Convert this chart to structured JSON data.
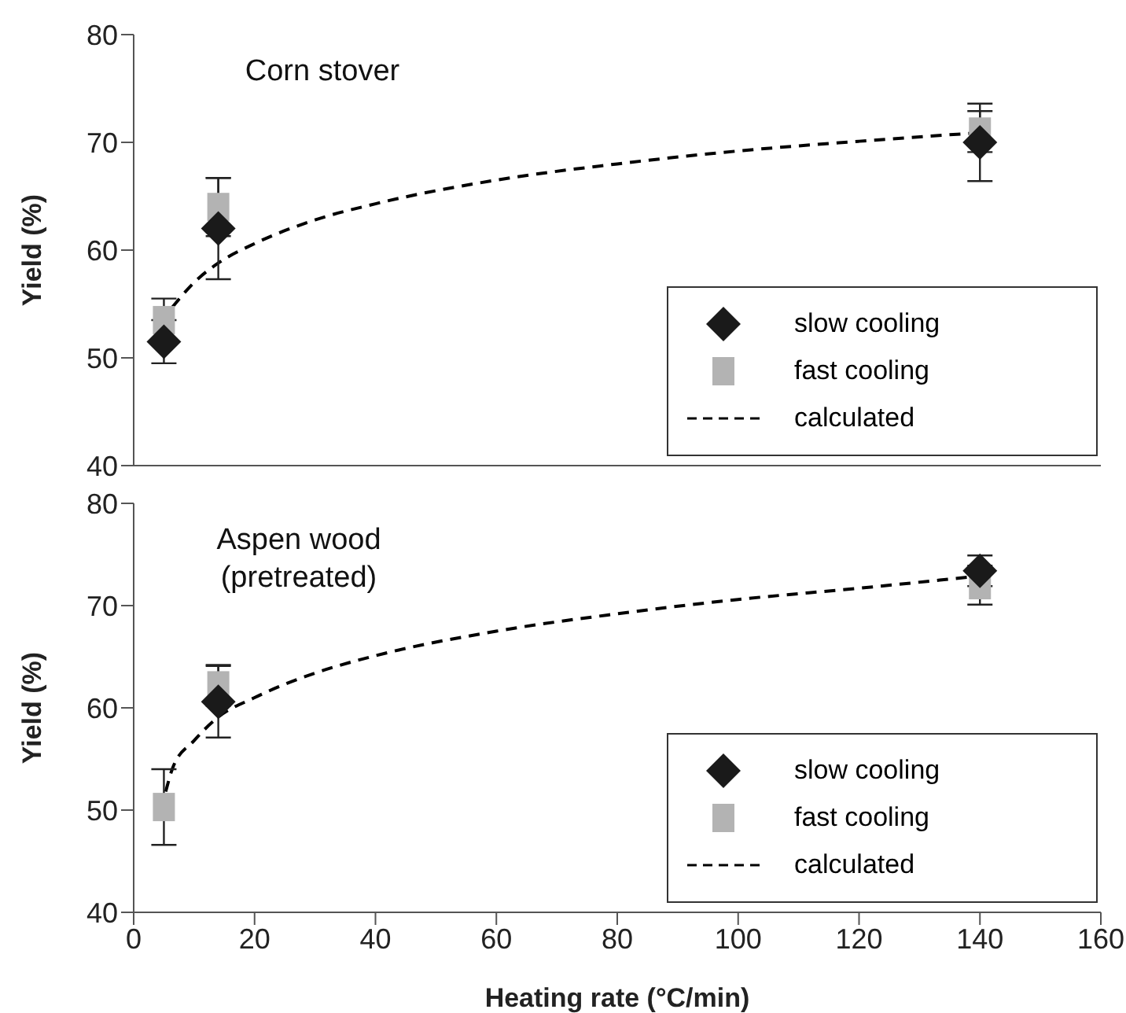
{
  "chart_data": [
    {
      "type": "scatter",
      "annotations": [
        "Corn stover"
      ],
      "ylabel": "Yield (%)",
      "xlim": [
        0,
        160
      ],
      "xticks": [
        0,
        20,
        40,
        60,
        80,
        100,
        120,
        140,
        160
      ],
      "ylim": [
        40,
        80
      ],
      "yticks": [
        40,
        50,
        60,
        70,
        80
      ],
      "tick_labels": "y",
      "legend": "bottom right",
      "series": [
        {
          "name": "slow cooling",
          "marker": "diamond",
          "color": "#1a1a1a",
          "x": [
            5,
            14,
            140
          ],
          "values": [
            51.5,
            62,
            70
          ],
          "errors": [
            2,
            4.7,
            3.6
          ]
        },
        {
          "name": "fast cooling",
          "marker": "square",
          "color": "#b3b3b3",
          "x": [
            5,
            14,
            140
          ],
          "values": [
            53.5,
            64,
            71
          ],
          "errors": [
            2,
            2.7,
            1.9
          ]
        },
        {
          "name": "calculated",
          "type": "line",
          "marker": "none",
          "line_style": "dashed",
          "color": "#000000",
          "x": [
            6.4,
            10,
            14,
            20,
            30,
            40,
            60,
            80,
            100,
            120,
            140
          ],
          "values": [
            54.7,
            57.0,
            58.8,
            60.6,
            62.8,
            64.3,
            66.5,
            68.0,
            69.2,
            70.1,
            70.9
          ]
        }
      ]
    },
    {
      "type": "scatter",
      "annotations": [
        "Aspen wood (pretreated)"
      ],
      "xlabel": "Heating rate (°C/min)",
      "ylabel": "Yield (%)",
      "xlim": [
        0,
        160
      ],
      "xticks": [
        0,
        20,
        40,
        60,
        80,
        100,
        120,
        140,
        160
      ],
      "ylim": [
        40,
        80
      ],
      "yticks": [
        40,
        50,
        60,
        70,
        80
      ],
      "legend": "bottom right",
      "series": [
        {
          "name": "slow cooling",
          "marker": "diamond",
          "color": "#1a1a1a",
          "x": [
            14,
            140
          ],
          "values": [
            60.6,
            73.4
          ],
          "errors": [
            3.5,
            1.5
          ]
        },
        {
          "name": "fast cooling",
          "marker": "square",
          "color": "#b3b3b3",
          "x": [
            5,
            14,
            140
          ],
          "values": [
            50.3,
            62.2,
            72
          ],
          "errors": [
            3.7,
            2,
            1.9
          ]
        },
        {
          "name": "calculated",
          "type": "line",
          "marker": "none",
          "line_style": "dashed",
          "color": "#000000",
          "x": [
            5.3,
            6.5,
            10,
            14,
            20,
            30,
            40,
            60,
            80,
            100,
            120,
            140
          ],
          "values": [
            51.8,
            54.2,
            56.8,
            59.1,
            61.0,
            63.4,
            65.1,
            67.5,
            69.2,
            70.6,
            71.7,
            72.9
          ]
        }
      ]
    }
  ]
}
